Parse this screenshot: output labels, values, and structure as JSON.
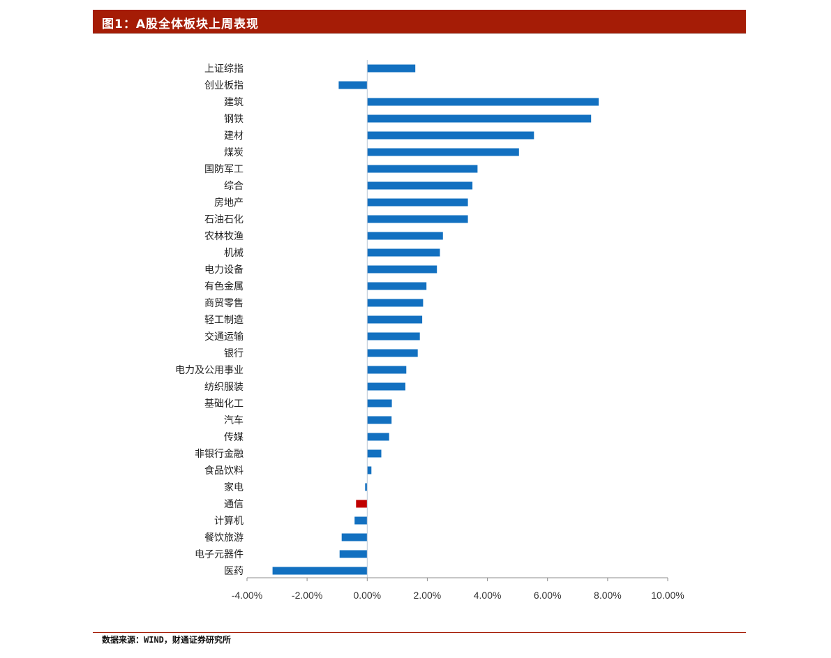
{
  "header": {
    "title": "图1：A股全体板块上周表现"
  },
  "footer": {
    "source": "数据来源：WIND，财通证券研究所"
  },
  "colors": {
    "title_bg": "#a51c06",
    "bar_default": "#1270c0",
    "bar_highlight": "#c00000",
    "axis": "#8c8c8c"
  },
  "chart_data": {
    "type": "bar",
    "orientation": "horizontal",
    "title": "A股全体板块上周表现",
    "xlabel": "",
    "ylabel": "",
    "xlim": [
      -0.04,
      0.1
    ],
    "x_ticks": [
      -0.04,
      -0.02,
      0.0,
      0.02,
      0.04,
      0.06,
      0.08,
      0.1
    ],
    "x_tick_labels": [
      "-4.00%",
      "-2.00%",
      "0.00%",
      "2.00%",
      "4.00%",
      "6.00%",
      "8.00%",
      "10.00%"
    ],
    "grid": false,
    "categories": [
      "上证综指",
      "创业板指",
      "建筑",
      "钢铁",
      "建材",
      "煤炭",
      "国防军工",
      "综合",
      "房地产",
      "石油石化",
      "农林牧渔",
      "机械",
      "电力设备",
      "有色金属",
      "商贸零售",
      "轻工制造",
      "交通运输",
      "银行",
      "电力及公用事业",
      "纺织服装",
      "基础化工",
      "汽车",
      "传媒",
      "非银行金融",
      "食品饮料",
      "家电",
      "通信",
      "计算机",
      "餐饮旅游",
      "电子元器件",
      "医药"
    ],
    "values": [
      0.016,
      -0.0095,
      0.077,
      0.0745,
      0.0555,
      0.0505,
      0.0367,
      0.035,
      0.0335,
      0.0335,
      0.0252,
      0.0242,
      0.0232,
      0.0197,
      0.0186,
      0.0183,
      0.0175,
      0.0168,
      0.013,
      0.0127,
      0.0082,
      0.0081,
      0.0073,
      0.0047,
      0.0014,
      -0.0007,
      -0.0037,
      -0.0042,
      -0.0085,
      -0.0092,
      -0.0315
    ],
    "highlight": [
      "通信"
    ]
  }
}
